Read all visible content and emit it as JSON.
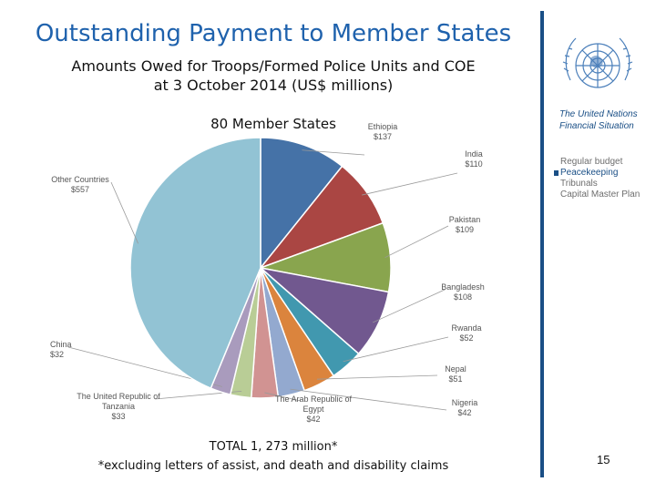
{
  "slide": {
    "title": "Outstanding Payment to Member States",
    "subtitle_line1": "Amounts Owed for Troops/Formed Police Units and COE",
    "subtitle_line2": "at 3 October 2014 (US$ millions)",
    "member_count": "80 Member States",
    "total": "TOTAL   1, 273  million*",
    "footnote": "*excluding letters of assist, and death and disability claims",
    "page_number": "15"
  },
  "sidebar": {
    "heading_line1": "The United Nations",
    "heading_line2": "Financial Situation",
    "menu": [
      {
        "label": "Regular budget",
        "active": false
      },
      {
        "label": "Peacekeeping",
        "active": true
      },
      {
        "label": "Tribunals",
        "active": false
      },
      {
        "label": "Capital Master Plan",
        "active": false
      }
    ]
  },
  "colors": {
    "title": "#1f62ad",
    "accent": "#1a4f86"
  },
  "chart_data": {
    "type": "pie",
    "title": "",
    "slices": [
      {
        "name": "Ethiopia",
        "value": 137,
        "value_label": "$137",
        "color": "#4572a7"
      },
      {
        "name": "India",
        "value": 110,
        "value_label": "$110",
        "color": "#aa4643"
      },
      {
        "name": "Pakistan",
        "value": 109,
        "value_label": "$109",
        "color": "#89a54e"
      },
      {
        "name": "Bangladesh",
        "value": 108,
        "value_label": "$108",
        "color": "#71588f"
      },
      {
        "name": "Rwanda",
        "value": 52,
        "value_label": "$52",
        "color": "#4198af"
      },
      {
        "name": "Nepal",
        "value": 51,
        "value_label": "$51",
        "color": "#db843d"
      },
      {
        "name": "Nigeria",
        "value": 42,
        "value_label": "$42",
        "color": "#93a9cf"
      },
      {
        "name": "The Arab Republic of Egypt",
        "value": 42,
        "value_label": "$42",
        "color": "#d19392"
      },
      {
        "name": "The United Republic of Tanzania",
        "value": 33,
        "value_label": "$33",
        "color": "#b9cd96"
      },
      {
        "name": "China",
        "value": 32,
        "value_label": "$32",
        "color": "#a99bbd"
      },
      {
        "name": "Other Countries",
        "value": 557,
        "value_label": "$557",
        "color": "#92c3d4"
      }
    ]
  }
}
